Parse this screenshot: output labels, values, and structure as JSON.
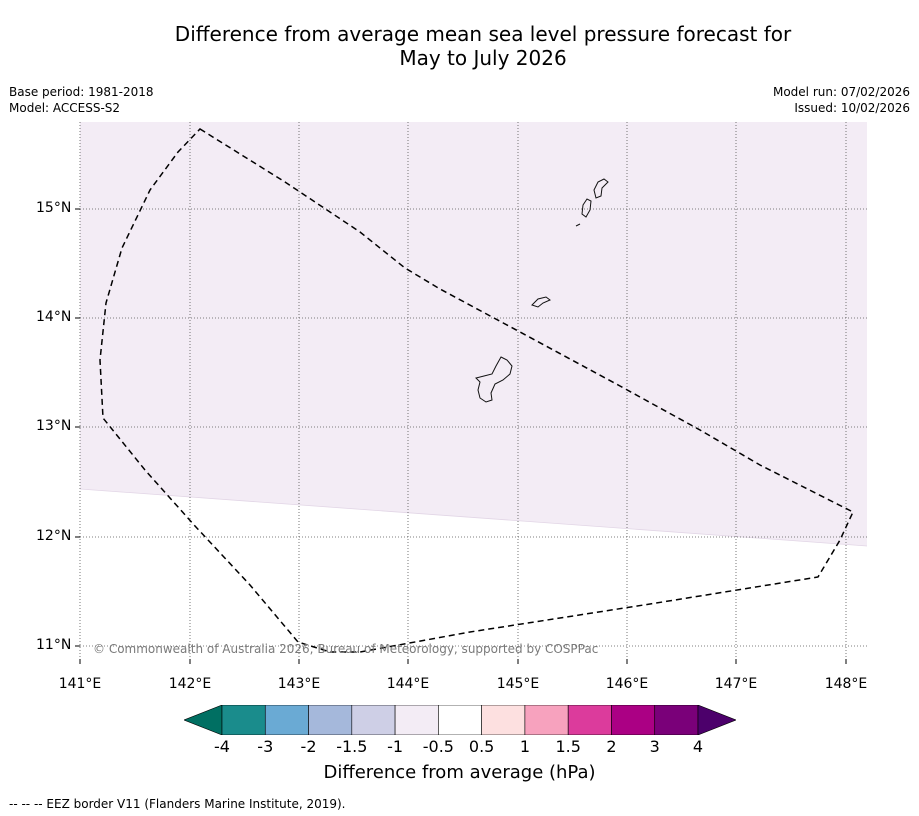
{
  "header": {
    "title_line1": "Difference from average mean sea level pressure forecast for",
    "title_line2": "May to July 2026",
    "base_period": "Base period: 1981-2018",
    "model": "Model: ACCESS-S2",
    "model_run": "Model run: 07/02/2026",
    "issued": "Issued: 10/02/2026"
  },
  "map": {
    "lat_labels": [
      "15°N",
      "14°N",
      "13°N",
      "12°N",
      "11°N"
    ],
    "lon_labels": [
      "141°E",
      "142°E",
      "143°E",
      "144°E",
      "145°E",
      "146°E",
      "147°E",
      "148°E"
    ],
    "copyright": "© Commonwealth of Australia 2026, Bureau of Meteorology, supported by COSPPac",
    "shaded_category": "-0.5 to -1",
    "shading_color": "#f3ecf5"
  },
  "colorbar": {
    "title": "Difference from average (hPa)",
    "tick_labels": [
      "-4",
      "-3",
      "-2",
      "-1.5",
      "-1",
      "-0.5",
      "0.5",
      "1",
      "1.5",
      "2",
      "3",
      "4"
    ],
    "colors": [
      "#1a8c8c",
      "#6aaad4",
      "#a5b8db",
      "#cecfe6",
      "#f3ecf5",
      "#ffffff",
      "#fde0e0",
      "#f7a2be",
      "#dc3b9c",
      "#ab0084",
      "#7a0079"
    ],
    "under_color": "#006f62",
    "over_color": "#4c006b"
  },
  "footer": {
    "eez_note": "--  --  -- EEZ border V11 (Flanders Marine Institute, 2019)."
  }
}
